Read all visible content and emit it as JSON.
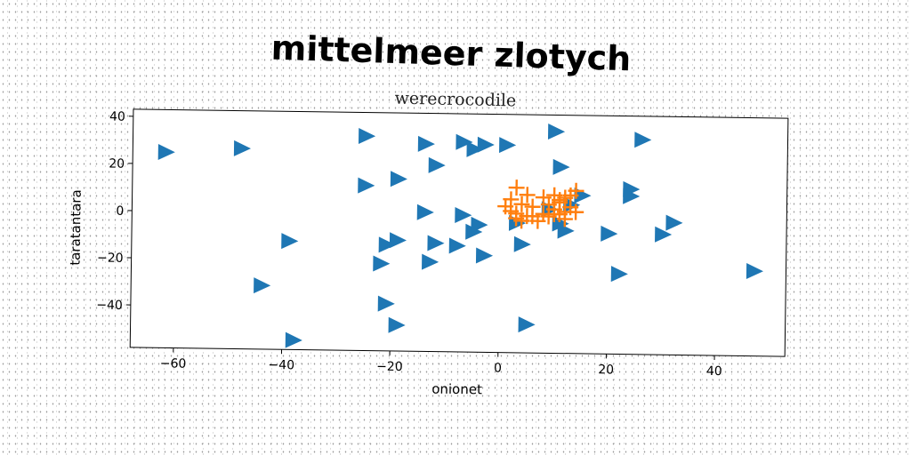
{
  "chart_data": {
    "type": "scatter",
    "title": "mittelmeer zlotych",
    "subtitle": "werecrocodile",
    "xlabel": "onionet",
    "ylabel": "taratantara",
    "xlim": [
      -68,
      53
    ],
    "ylim": [
      -58,
      43
    ],
    "xticks": [
      -60,
      -40,
      -20,
      0,
      20,
      40
    ],
    "yticks": [
      40,
      20,
      0,
      -20,
      -40
    ],
    "grid": false,
    "series": [
      {
        "marker": "triangle-right",
        "color": "#1f77b4",
        "x": [
          -62,
          -48,
          -25,
          -14,
          -7,
          -5,
          -3,
          1,
          10,
          26,
          -25,
          -19,
          -12,
          11,
          24,
          24,
          -14,
          -7,
          -5,
          -4,
          3,
          11,
          12,
          20,
          32,
          30,
          47,
          -39,
          -21,
          -19,
          -12,
          -8,
          -13,
          -3,
          4,
          -22,
          -44,
          -21,
          -19,
          -38,
          5,
          22,
          15,
          13,
          9
        ],
        "y": [
          25,
          27,
          33,
          30,
          31,
          28,
          30,
          30,
          36,
          33,
          12,
          15,
          21,
          21,
          12,
          9,
          1,
          0,
          -7,
          -4,
          -3,
          -3,
          -6,
          -7,
          -2,
          -7,
          -22,
          -12,
          -13,
          -11,
          -12,
          -13,
          -20,
          -17,
          -12,
          -21,
          -31,
          -38,
          -47,
          -54,
          -46,
          -24,
          9,
          5,
          3
        ]
      },
      {
        "marker": "plus",
        "color": "#ff7f0e",
        "x": [
          3,
          5,
          2,
          4,
          6,
          8,
          3,
          1,
          5,
          7,
          9,
          10,
          11,
          12,
          13,
          14,
          11,
          12,
          10,
          9,
          13,
          14,
          4,
          6,
          2,
          3,
          8,
          12,
          11,
          10
        ],
        "y": [
          12,
          9,
          7,
          5,
          4,
          8,
          1,
          4,
          0,
          -2,
          0,
          3,
          6,
          8,
          9,
          11,
          1,
          -1,
          1,
          5,
          4,
          2,
          -2,
          0,
          2,
          -1,
          1,
          2,
          7,
          9
        ]
      }
    ]
  }
}
